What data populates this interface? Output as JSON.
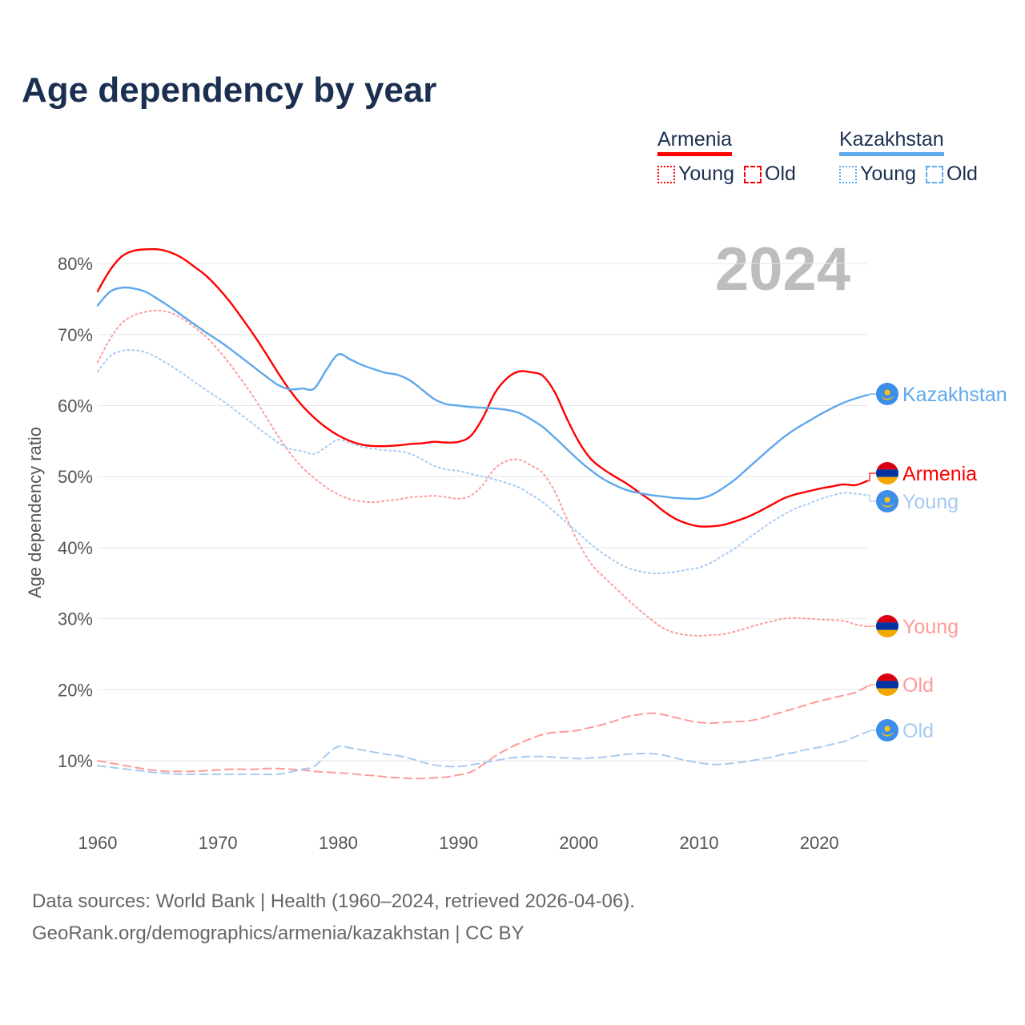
{
  "title": "Age dependency by year",
  "legend": {
    "countries": [
      {
        "name": "Armenia",
        "color": "#ff0000",
        "light": "#ff9a9a",
        "young_label": "Young",
        "old_label": "Old"
      },
      {
        "name": "Kazakhstan",
        "color": "#5ea8ec",
        "light": "#a6cbf1",
        "young_label": "Young",
        "old_label": "Old"
      }
    ]
  },
  "year_watermark": "2024",
  "footer": {
    "line1": "Data sources: World Bank | Health (1960–2024, retrieved 2026-04-06).",
    "line2": "GeoRank.org/demographics/armenia/kazakhstan | CC BY"
  },
  "chart_data": {
    "type": "line",
    "title": "Age dependency by year",
    "xlabel": "",
    "ylabel": "Age dependency ratio",
    "xlim": [
      1960,
      2024
    ],
    "ylim": [
      0,
      85
    ],
    "x_ticks": [
      1960,
      1970,
      1980,
      1990,
      2000,
      2010,
      2020
    ],
    "x_tick_labels": [
      "1960",
      "1970",
      "1980",
      "1990",
      "2000",
      "2010",
      "2020"
    ],
    "y_ticks": [
      10,
      20,
      30,
      40,
      50,
      60,
      70,
      80
    ],
    "y_tick_labels": [
      "10%",
      "20%",
      "30%",
      "40%",
      "50%",
      "60%",
      "70%",
      "80%"
    ],
    "grid": true,
    "legend_position": "top-right",
    "x_start": 1960,
    "series": [
      {
        "name": "Armenia",
        "label": "Armenia",
        "style": "solid",
        "color": "#ff0000",
        "values": [
          76.1,
          79,
          81,
          81.8,
          82,
          82,
          81.6,
          80.8,
          79.6,
          78.3,
          76.6,
          74.6,
          72.3,
          69.9,
          67.3,
          64.6,
          62.1,
          60,
          58.3,
          56.9,
          55.8,
          55,
          54.5,
          54.3,
          54.3,
          54.4,
          54.6,
          54.7,
          54.9,
          54.8,
          54.9,
          55.7,
          58.2,
          61.7,
          63.8,
          64.8,
          64.7,
          64.2,
          61.9,
          58.2,
          54.9,
          52.5,
          51.1,
          50,
          49,
          47.8,
          46.6,
          45.2,
          44.1,
          43.4,
          43,
          43,
          43.2,
          43.7,
          44.3,
          45.1,
          46,
          46.9,
          47.5,
          47.9,
          48.3,
          48.6,
          48.9,
          48.8,
          49.4
        ]
      },
      {
        "name": "Armenia Young",
        "label": "Young",
        "style": "dotted",
        "color": "#ff9a9a",
        "values": [
          66.1,
          69.3,
          71.6,
          72.7,
          73.2,
          73.4,
          73.1,
          72.3,
          71.1,
          69.7,
          67.9,
          65.8,
          63.5,
          61.1,
          58.4,
          55.7,
          53.3,
          51.3,
          49.8,
          48.5,
          47.5,
          46.8,
          46.5,
          46.4,
          46.6,
          46.8,
          47.1,
          47.2,
          47.3,
          47.1,
          46.9,
          47.3,
          48.8,
          51.1,
          52.2,
          52.4,
          51.6,
          50.5,
          47.9,
          44.1,
          40.6,
          37.8,
          36,
          34.4,
          32.8,
          31.3,
          29.9,
          28.7,
          28,
          27.7,
          27.6,
          27.7,
          27.8,
          28.2,
          28.7,
          29.2,
          29.6,
          30,
          30.1,
          30,
          29.9,
          29.8,
          29.7,
          29.2,
          28.9
        ]
      },
      {
        "name": "Armenia Old",
        "label": "Old",
        "style": "dashed",
        "color": "#ff9a9a",
        "values": [
          10,
          9.7,
          9.4,
          9.1,
          8.8,
          8.6,
          8.5,
          8.5,
          8.5,
          8.6,
          8.7,
          8.8,
          8.8,
          8.8,
          8.9,
          8.9,
          8.8,
          8.7,
          8.5,
          8.4,
          8.3,
          8.2,
          8,
          7.9,
          7.7,
          7.6,
          7.5,
          7.5,
          7.6,
          7.7,
          8,
          8.4,
          9.4,
          10.6,
          11.6,
          12.4,
          13.1,
          13.7,
          14,
          14.1,
          14.3,
          14.7,
          15.1,
          15.6,
          16.2,
          16.5,
          16.7,
          16.5,
          16.1,
          15.7,
          15.4,
          15.3,
          15.4,
          15.5,
          15.6,
          15.9,
          16.4,
          16.9,
          17.4,
          17.9,
          18.4,
          18.8,
          19.2,
          19.6,
          20.5
        ]
      },
      {
        "name": "Kazakhstan",
        "label": "Kazakhstan",
        "style": "solid",
        "color": "#5ea8ec",
        "values": [
          74.1,
          76,
          76.6,
          76.5,
          76,
          75,
          73.9,
          72.7,
          71.5,
          70.3,
          69.2,
          68,
          66.7,
          65.4,
          64.1,
          62.9,
          62.3,
          62.4,
          62.4,
          65,
          67.2,
          66.5,
          65.7,
          65.1,
          64.6,
          64.3,
          63.5,
          62.2,
          60.9,
          60.2,
          60,
          59.8,
          59.7,
          59.6,
          59.4,
          59,
          58.1,
          57,
          55.5,
          53.9,
          52.3,
          50.9,
          49.7,
          48.8,
          48.1,
          47.7,
          47.4,
          47.2,
          47,
          46.9,
          46.9,
          47.4,
          48.4,
          49.6,
          51.1,
          52.6,
          54.1,
          55.5,
          56.7,
          57.7,
          58.7,
          59.6,
          60.4,
          61,
          61.5
        ]
      },
      {
        "name": "Kazakhstan Young",
        "label": "Young",
        "style": "dotted",
        "color": "#a6cbf1",
        "values": [
          64.8,
          66.9,
          67.7,
          67.8,
          67.5,
          66.7,
          65.7,
          64.6,
          63.4,
          62.2,
          61.1,
          59.9,
          58.6,
          57.3,
          56,
          54.8,
          53.9,
          53.6,
          53.2,
          54.2,
          55.2,
          54.7,
          54.2,
          53.9,
          53.7,
          53.6,
          53.2,
          52.4,
          51.5,
          51,
          50.8,
          50.4,
          50,
          49.6,
          49.1,
          48.5,
          47.5,
          46.4,
          45,
          43.5,
          42,
          40.5,
          39.2,
          38.1,
          37.2,
          36.7,
          36.4,
          36.4,
          36.6,
          36.9,
          37.2,
          37.9,
          38.9,
          39.9,
          41.2,
          42.4,
          43.6,
          44.6,
          45.5,
          46.1,
          46.8,
          47.3,
          47.7,
          47.6,
          47.4
        ]
      },
      {
        "name": "Kazakhstan Old",
        "label": "Old",
        "style": "dashed",
        "color": "#a6cbf1",
        "values": [
          9.3,
          9.1,
          8.9,
          8.7,
          8.5,
          8.3,
          8.2,
          8.1,
          8.1,
          8.1,
          8.1,
          8.1,
          8.1,
          8.1,
          8.1,
          8.1,
          8.4,
          8.8,
          9.2,
          10.8,
          12,
          11.8,
          11.5,
          11.2,
          10.9,
          10.7,
          10.3,
          9.8,
          9.4,
          9.2,
          9.2,
          9.4,
          9.7,
          10,
          10.3,
          10.5,
          10.6,
          10.6,
          10.5,
          10.4,
          10.3,
          10.4,
          10.5,
          10.7,
          10.9,
          11,
          11,
          10.8,
          10.4,
          10,
          9.7,
          9.5,
          9.5,
          9.7,
          9.9,
          10.2,
          10.5,
          10.9,
          11.2,
          11.6,
          11.9,
          12.3,
          12.7,
          13.4,
          14.1
        ]
      }
    ]
  }
}
